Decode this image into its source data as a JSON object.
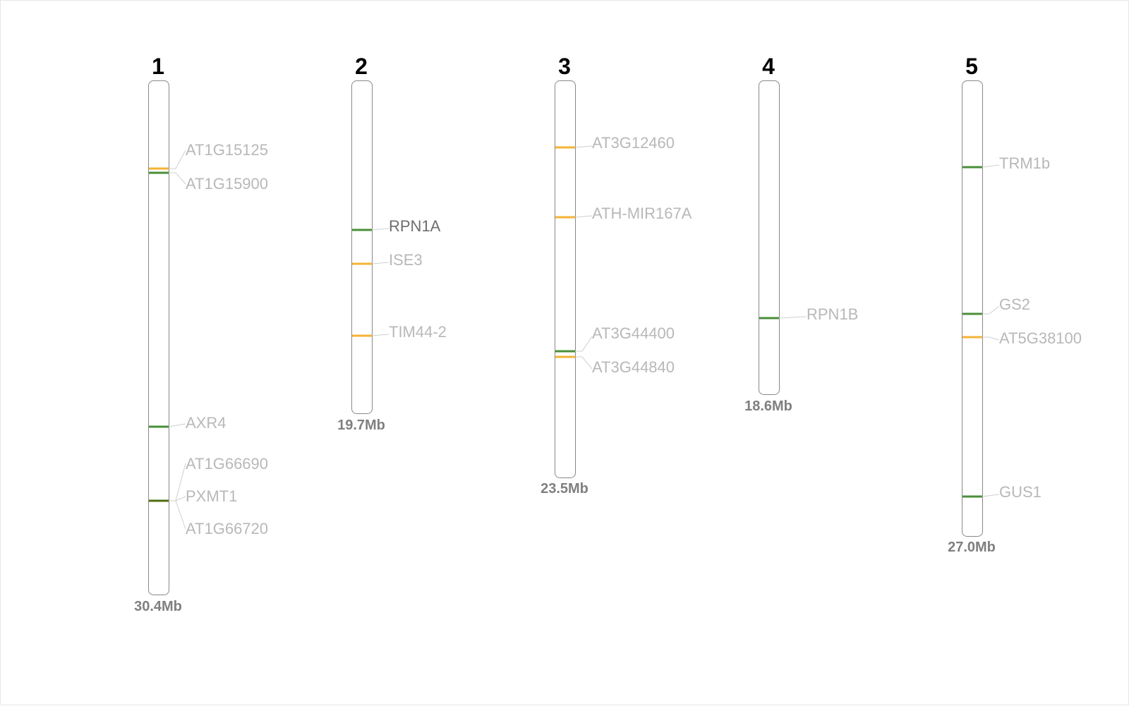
{
  "colors": {
    "yellow": "#f5b335",
    "green": "#4a8f3a",
    "dark_green": "#4f6b10",
    "label": "#b8b8b8",
    "label_active": "#6e6e6e",
    "length_label": "#7f7f7f",
    "chromosome_outline": "#888888"
  },
  "chromosomes": [
    {
      "number": "1",
      "length_label": "30.4Mb",
      "genes": [
        {
          "name": "AT1G15125",
          "color": "yellow"
        },
        {
          "name": "AT1G15900",
          "color": "green"
        },
        {
          "name": "AXR4",
          "color": "green"
        },
        {
          "name": "AT1G66690",
          "color": "dark_green"
        },
        {
          "name": "PXMT1",
          "color": "dark_green"
        },
        {
          "name": "AT1G66720",
          "color": "dark_green"
        }
      ]
    },
    {
      "number": "2",
      "length_label": "19.7Mb",
      "genes": [
        {
          "name": "RPN1A",
          "color": "green",
          "active": true
        },
        {
          "name": "ISE3",
          "color": "yellow"
        },
        {
          "name": "TIM44-2",
          "color": "yellow"
        }
      ]
    },
    {
      "number": "3",
      "length_label": "23.5Mb",
      "genes": [
        {
          "name": "AT3G12460",
          "color": "yellow"
        },
        {
          "name": "ATH-MIR167A",
          "color": "yellow"
        },
        {
          "name": "AT3G44400",
          "color": "green"
        },
        {
          "name": "AT3G44840",
          "color": "yellow"
        }
      ]
    },
    {
      "number": "4",
      "length_label": "18.6Mb",
      "genes": [
        {
          "name": "RPN1B",
          "color": "green"
        }
      ]
    },
    {
      "number": "5",
      "length_label": "27.0Mb",
      "genes": [
        {
          "name": "TRM1b",
          "color": "green"
        },
        {
          "name": "GS2",
          "color": "green"
        },
        {
          "name": "AT5G38100",
          "color": "yellow"
        },
        {
          "name": "GUS1",
          "color": "green"
        }
      ]
    }
  ]
}
